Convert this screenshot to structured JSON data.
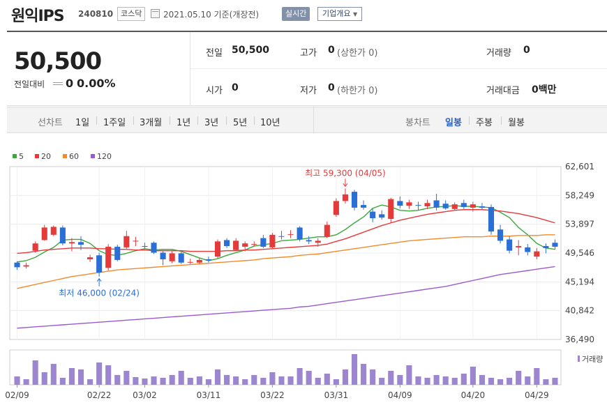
{
  "header": {
    "name": "원익IPS",
    "code": "240810",
    "market": "코스닥",
    "date": "2021.05.10",
    "date_suffix": "기준(개장전)",
    "realtime_label": "실시간",
    "company_label": "기업개요"
  },
  "summary": {
    "price": "50,500",
    "change_label": "전일대비",
    "change_value": "0",
    "change_pct": "0.00%",
    "prev_label": "전일",
    "prev_value": "50,500",
    "open_label": "시가",
    "open_value": "0",
    "high_label": "고가",
    "high_value": "0",
    "high_limit": "(상한가 0)",
    "low_label": "저가",
    "low_value": "0",
    "low_limit": "(하한가 0)",
    "volume_label": "거래량",
    "volume_value": "0",
    "amount_label": "거래대금",
    "amount_value": "0백만"
  },
  "range_bar": {
    "line_label": "선차트",
    "ranges": [
      "1일",
      "1주일",
      "3개월",
      "1년",
      "3년",
      "5년",
      "10년"
    ],
    "candle_label": "봉차트",
    "candles": [
      "일봉",
      "주봉",
      "월봉"
    ],
    "active_candle": "일봉"
  },
  "legend": [
    {
      "label": "5",
      "color": "#3aa83a"
    },
    {
      "label": "20",
      "color": "#e53a3a"
    },
    {
      "label": "60",
      "color": "#f28a2a"
    },
    {
      "label": "120",
      "color": "#9b59d0"
    }
  ],
  "colors": {
    "up": "#e53a3a",
    "down": "#2a6fd6",
    "volume": "#9b86cf"
  },
  "chart_data": {
    "type": "candlestick",
    "ylim": [
      36490,
      62601
    ],
    "y_ticks": [
      "62,601",
      "58,249",
      "53,897",
      "49,546",
      "45,194",
      "40,842",
      "36,490"
    ],
    "x_ticks": [
      "02/09",
      "02/22",
      "03/02",
      "03/11",
      "03/22",
      "03/31",
      "04/09",
      "04/20",
      "04/29"
    ],
    "max_label": "최고 59,300 (04/05)",
    "min_label": "최저 46,000 (02/24)",
    "volume_legend": "거래량",
    "candles": [
      {
        "o": 48100,
        "c": 47400,
        "h": 48300,
        "l": 47000
      },
      {
        "o": 47500,
        "c": 47700,
        "h": 48100,
        "l": 47200
      },
      {
        "o": 49900,
        "c": 51000,
        "h": 51300,
        "l": 49600
      },
      {
        "o": 51500,
        "c": 53400,
        "h": 53800,
        "l": 51400
      },
      {
        "o": 52300,
        "c": 53500,
        "h": 53700,
        "l": 52100
      },
      {
        "o": 53400,
        "c": 51000,
        "h": 53700,
        "l": 50700
      },
      {
        "o": 51000,
        "c": 51200,
        "h": 51800,
        "l": 49800
      },
      {
        "o": 51200,
        "c": 50800,
        "h": 52100,
        "l": 50000
      },
      {
        "o": 48600,
        "c": 48900,
        "h": 49300,
        "l": 48200
      },
      {
        "o": 49200,
        "c": 46600,
        "h": 49600,
        "l": 46000
      },
      {
        "o": 47300,
        "c": 50500,
        "h": 50900,
        "l": 46900
      },
      {
        "o": 50500,
        "c": 48500,
        "h": 50800,
        "l": 48300
      },
      {
        "o": 50400,
        "c": 52100,
        "h": 52900,
        "l": 50200
      },
      {
        "o": 51300,
        "c": 51400,
        "h": 52000,
        "l": 50600
      },
      {
        "o": 50600,
        "c": 50500,
        "h": 51100,
        "l": 50100
      },
      {
        "o": 51100,
        "c": 49600,
        "h": 51300,
        "l": 49400
      },
      {
        "o": 49600,
        "c": 48600,
        "h": 49800,
        "l": 47700
      },
      {
        "o": 48300,
        "c": 49500,
        "h": 49800,
        "l": 48000
      },
      {
        "o": 49500,
        "c": 48100,
        "h": 49700,
        "l": 47900
      },
      {
        "o": 48100,
        "c": 48200,
        "h": 48700,
        "l": 47900
      },
      {
        "o": 48100,
        "c": 48500,
        "h": 48800,
        "l": 47900
      },
      {
        "o": 48600,
        "c": 48400,
        "h": 49000,
        "l": 48100
      },
      {
        "o": 49000,
        "c": 51300,
        "h": 51600,
        "l": 48800
      },
      {
        "o": 51500,
        "c": 50600,
        "h": 51800,
        "l": 50300
      },
      {
        "o": 50000,
        "c": 51400,
        "h": 51800,
        "l": 49900
      },
      {
        "o": 50500,
        "c": 51000,
        "h": 51300,
        "l": 49800
      },
      {
        "o": 50800,
        "c": 50900,
        "h": 51300,
        "l": 50500
      },
      {
        "o": 51800,
        "c": 50500,
        "h": 52300,
        "l": 50300
      },
      {
        "o": 50400,
        "c": 52300,
        "h": 52600,
        "l": 50200
      },
      {
        "o": 52100,
        "c": 52000,
        "h": 52900,
        "l": 51600
      },
      {
        "o": 52300,
        "c": 52400,
        "h": 53000,
        "l": 51800
      },
      {
        "o": 53400,
        "c": 51600,
        "h": 53600,
        "l": 51300
      },
      {
        "o": 51500,
        "c": 51300,
        "h": 52100,
        "l": 50900
      },
      {
        "o": 51100,
        "c": 51400,
        "h": 51800,
        "l": 50500
      },
      {
        "o": 52000,
        "c": 53800,
        "h": 54300,
        "l": 51800
      },
      {
        "o": 55300,
        "c": 57400,
        "h": 57800,
        "l": 55000
      },
      {
        "o": 57400,
        "c": 58400,
        "h": 59300,
        "l": 57000
      },
      {
        "o": 58800,
        "c": 56400,
        "h": 59100,
        "l": 56000
      },
      {
        "o": 56800,
        "c": 56400,
        "h": 57500,
        "l": 56100
      },
      {
        "o": 55800,
        "c": 54800,
        "h": 56300,
        "l": 54200
      },
      {
        "o": 55400,
        "c": 54900,
        "h": 56000,
        "l": 54600
      },
      {
        "o": 54700,
        "c": 57700,
        "h": 57900,
        "l": 54100
      },
      {
        "o": 57400,
        "c": 56700,
        "h": 58100,
        "l": 56300
      },
      {
        "o": 56700,
        "c": 57200,
        "h": 57600,
        "l": 56200
      },
      {
        "o": 56800,
        "c": 56700,
        "h": 57300,
        "l": 56000
      },
      {
        "o": 56600,
        "c": 57100,
        "h": 57600,
        "l": 56200
      },
      {
        "o": 57500,
        "c": 56400,
        "h": 58500,
        "l": 56000
      },
      {
        "o": 57000,
        "c": 56300,
        "h": 57500,
        "l": 56100
      },
      {
        "o": 56200,
        "c": 56900,
        "h": 57200,
        "l": 56000
      },
      {
        "o": 57100,
        "c": 56500,
        "h": 57600,
        "l": 56200
      },
      {
        "o": 56400,
        "c": 56900,
        "h": 57300,
        "l": 55800
      },
      {
        "o": 56600,
        "c": 56400,
        "h": 57100,
        "l": 56100
      },
      {
        "o": 56500,
        "c": 52800,
        "h": 56900,
        "l": 52300
      },
      {
        "o": 53100,
        "c": 51400,
        "h": 53800,
        "l": 51000
      },
      {
        "o": 51600,
        "c": 49900,
        "h": 52100,
        "l": 49500
      },
      {
        "o": 50400,
        "c": 50600,
        "h": 51500,
        "l": 49200
      },
      {
        "o": 50400,
        "c": 49700,
        "h": 50900,
        "l": 49200
      },
      {
        "o": 49000,
        "c": 49800,
        "h": 50300,
        "l": 48600
      },
      {
        "o": 50600,
        "c": 50300,
        "h": 51000,
        "l": 49500
      },
      {
        "o": 51100,
        "c": 50500,
        "h": 51600,
        "l": 50100
      }
    ],
    "series": [
      {
        "name": "5",
        "values": [
          48200,
          48400,
          48900,
          49700,
          50400,
          51500,
          51600,
          51600,
          51000,
          49900,
          49300,
          49200,
          49500,
          49900,
          50200,
          50000,
          50100,
          50100,
          49800,
          49300,
          48800,
          48400,
          48700,
          49200,
          49600,
          50000,
          50600,
          50800,
          51000,
          51400,
          51500,
          51600,
          51800,
          52000,
          52000,
          52300,
          53100,
          54100,
          55000,
          56300,
          56800,
          56500,
          56000,
          55900,
          56000,
          56300,
          56500,
          56600,
          56700,
          56600,
          56600,
          56500,
          56400,
          55700,
          54900,
          53400,
          52300,
          51000,
          50300,
          50100
        ]
      },
      {
        "name": "20",
        "values": [
          49500,
          49600,
          49800,
          50000,
          50100,
          50200,
          50300,
          50300,
          50300,
          50200,
          50200,
          50100,
          50100,
          50000,
          50000,
          49900,
          49900,
          49900,
          49900,
          49800,
          49800,
          49800,
          49800,
          49900,
          49900,
          50000,
          50000,
          50100,
          50200,
          50300,
          50400,
          50500,
          50600,
          50700,
          50900,
          51300,
          51700,
          52200,
          52700,
          53200,
          53700,
          54100,
          54500,
          54800,
          55100,
          55400,
          55600,
          55800,
          56000,
          56100,
          56100,
          56100,
          56000,
          55900,
          55700,
          55500,
          55200,
          54900,
          54500,
          54100
        ]
      },
      {
        "name": "60",
        "values": [
          44200,
          44500,
          44800,
          45100,
          45400,
          45700,
          46000,
          46200,
          46400,
          46600,
          46800,
          47000,
          47100,
          47200,
          47300,
          47400,
          47500,
          47600,
          47700,
          47800,
          47900,
          48000,
          48100,
          48200,
          48300,
          48400,
          48500,
          48700,
          48800,
          48900,
          49000,
          49200,
          49300,
          49400,
          49600,
          49800,
          50000,
          50200,
          50400,
          50600,
          50800,
          51000,
          51200,
          51400,
          51500,
          51600,
          51700,
          51800,
          51900,
          52000,
          52000,
          52000,
          52100,
          52100,
          52100,
          52200,
          52200,
          52200,
          52300,
          52300
        ]
      },
      {
        "name": "120",
        "values": [
          38200,
          38300,
          38400,
          38500,
          38600,
          38700,
          38800,
          38900,
          39000,
          39100,
          39200,
          39300,
          39400,
          39500,
          39600,
          39700,
          39800,
          39900,
          40000,
          40100,
          40200,
          40300,
          40400,
          40500,
          40600,
          40700,
          40800,
          40900,
          41000,
          41100,
          41200,
          41400,
          41500,
          41700,
          41900,
          42100,
          42300,
          42500,
          42700,
          42900,
          43100,
          43300,
          43500,
          43700,
          43900,
          44100,
          44300,
          44500,
          44800,
          45100,
          45400,
          45700,
          46000,
          46300,
          46500,
          46700,
          46900,
          47100,
          47300,
          47500
        ]
      }
    ],
    "volumes": [
      12,
      8,
      35,
      18,
      30,
      10,
      24,
      22,
      8,
      32,
      28,
      14,
      20,
      11,
      9,
      12,
      10,
      14,
      20,
      10,
      12,
      8,
      22,
      14,
      12,
      8,
      14,
      10,
      18,
      12,
      12,
      24,
      20,
      10,
      16,
      8,
      22,
      44,
      30,
      22,
      10,
      20,
      14,
      28,
      12,
      10,
      14,
      12,
      10,
      16,
      26,
      14,
      10,
      8,
      10,
      20,
      12,
      24,
      8,
      10
    ]
  }
}
